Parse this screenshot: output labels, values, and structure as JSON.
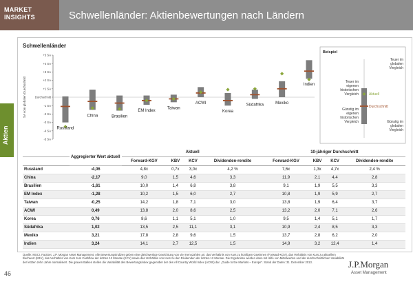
{
  "header": {
    "badge_line1": "MARKET",
    "badge_line2": "INSIGHTS",
    "title": "Schwellenländer: Aktienbewertungen nach Ländern"
  },
  "side_tab": "Aktien",
  "page_number": "46",
  "brand": {
    "name": "J.P.Morgan",
    "sub": "Asset Management"
  },
  "chart_data": {
    "type": "range-bar",
    "title": "Schwellenländer",
    "ylabel": "SA vom globalen Durchschnitt",
    "ylim": [
      -5,
      5
    ],
    "yticks": [
      "+5 SA",
      "+4 SA",
      "+3 SA",
      "+2 SA",
      "+1 SA",
      "Durchschnitt",
      "-1 SA",
      "-2 SA",
      "-3 SA",
      "-4 SA",
      "-5 SA"
    ],
    "categories": [
      "Russland",
      "China",
      "Brasilien",
      "EM Index",
      "Taiwan",
      "ACWI",
      "Korea",
      "Südafrika",
      "Mexiko",
      "Indien"
    ],
    "range_low": [
      -3.0,
      -1.5,
      -1.6,
      -0.9,
      -0.6,
      0.0,
      -1.0,
      -0.2,
      0.0,
      2.2
    ],
    "range_high": [
      0.1,
      0.9,
      0.2,
      0.2,
      0.3,
      1.2,
      0.5,
      0.9,
      1.9,
      4.4
    ],
    "average": [
      -1.1,
      -0.5,
      -0.7,
      -0.4,
      -0.2,
      0.5,
      -0.4,
      0.3,
      1.0,
      3.1
    ],
    "current": [
      -3.5,
      -1.3,
      -1.4,
      -0.4,
      -0.2,
      0.6,
      0.9,
      1.0,
      2.8,
      2.1
    ],
    "grid": false,
    "legend": {
      "title": "Beispiel",
      "expensive": "Teuer im globalen Vergleich",
      "expensive_hist": "Teuer im eigenen historischen Vergleich",
      "current": "Aktuell",
      "average": "Durchschnitt",
      "cheap_hist": "Günstig im eigenen historischen Vergleich",
      "cheap": "Günstig im globalen Vergleich"
    },
    "colors": {
      "bar": "#7d7d7d",
      "average": "#a0522d",
      "current": "#8aa63a",
      "axis": "#777777"
    }
  },
  "table": {
    "col_aggregate": "Aggregierter Wert aktuell",
    "group_current": "Aktuell",
    "group_avg": "10-jähriger Durchschnitt",
    "subcols_current": [
      "Forward-KGV",
      "KBV",
      "KCV",
      "Dividenden-rendite"
    ],
    "subcols_avg": [
      "Forward-KGV",
      "KBV",
      "KCV",
      "Dividenden-rendite"
    ],
    "rows": [
      {
        "name": "Russland",
        "agg": "-4,06",
        "c": [
          "4,8x",
          "0,7x",
          "3,0x",
          "4,2 %"
        ],
        "a": [
          "7,6x",
          "1,3x",
          "4,7x",
          "2,4 %"
        ]
      },
      {
        "name": "China",
        "agg": "-2,17",
        "c": [
          "9,0",
          "1,5",
          "4,6",
          "3,3"
        ],
        "a": [
          "11,9",
          "2,1",
          "4,4",
          "2,8"
        ]
      },
      {
        "name": "Brasilien",
        "agg": "-1,61",
        "c": [
          "10,0",
          "1,4",
          "6,8",
          "3,8"
        ],
        "a": [
          "9,1",
          "1,9",
          "5,5",
          "3,3"
        ]
      },
      {
        "name": "EM Index",
        "agg": "-1,28",
        "c": [
          "10,2",
          "1,5",
          "6,0",
          "2,7"
        ],
        "a": [
          "10,8",
          "1,9",
          "5,9",
          "2,7"
        ]
      },
      {
        "name": "Taiwan",
        "agg": "-0,25",
        "c": [
          "14,2",
          "1,8",
          "7,1",
          "3,0"
        ],
        "a": [
          "13,8",
          "1,9",
          "6,4",
          "3,7"
        ]
      },
      {
        "name": "ACWI",
        "agg": "0,49",
        "c": [
          "13,8",
          "2,0",
          "8,6",
          "2,5"
        ],
        "a": [
          "13,2",
          "2,0",
          "7,1",
          "2,6"
        ]
      },
      {
        "name": "Korea",
        "agg": "0,76",
        "c": [
          "8,6",
          "1,1",
          "5,1",
          "1,0"
        ],
        "a": [
          "9,5",
          "1,4",
          "5,1",
          "1,7"
        ]
      },
      {
        "name": "Südafrika",
        "agg": "1,02",
        "c": [
          "13,5",
          "2,5",
          "11,1",
          "3,1"
        ],
        "a": [
          "10,9",
          "2,4",
          "8,5",
          "3,3"
        ]
      },
      {
        "name": "Mexiko",
        "agg": "3,21",
        "c": [
          "17,8",
          "2,8",
          "9,6",
          "1,5"
        ],
        "a": [
          "13,7",
          "2,8",
          "6,2",
          "2,0"
        ]
      },
      {
        "name": "Indien",
        "agg": "3,24",
        "c": [
          "14,1",
          "2,7",
          "12,5",
          "1,5"
        ],
        "a": [
          "14,9",
          "3,2",
          "12,4",
          "1,4"
        ]
      }
    ]
  },
  "footnote": "Quelle: MSCI, FactSet, J.P. Morgan Asset Management. Alle Bewertungsindizes geben eine gleichwertige Gewichtung von vier Kennzahlen an: das Verhältnis von Kurs zu künftigen Gewinnen (Forward-KGV), das Verhältnis von Kurs zu aktuellem Buchwert (KBV), das Verhältnis von Kurs zum Cashflow der letzten 12 Monate (KCV) sowie das Verhältnis von Kurs zu den Dividenden der letzten 12 Monate. Die Ergebnisse werden dann mit Hilfe von Mittelwerten und der durchschnittlichen Variabilität der letzten zehn Jahre normalisiert. Die grauen Balken stellen die Variabilität des Bewertungsindex gegenüber der des All Country World Index (ACWI) dar. „Guide to the Markets – Europe\". Stand der Daten: 31. Dezember 2013."
}
